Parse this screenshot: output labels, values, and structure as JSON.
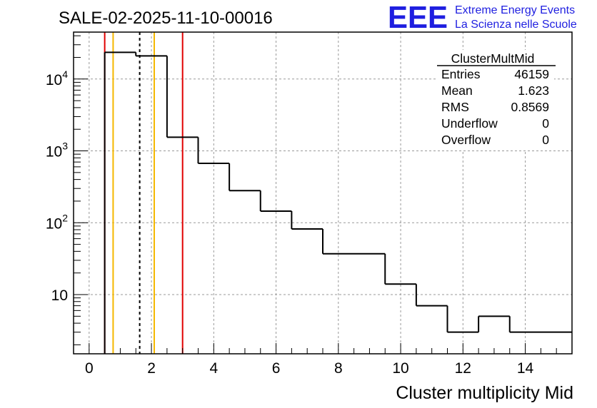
{
  "page_title": "SALE-02-2025-11-10-00016",
  "logo": {
    "mark": "EEE",
    "line1": "Extreme Energy Events",
    "line2": "La Scienza nelle Scuole",
    "color": "#1f1fe0"
  },
  "stats_box": {
    "name": "ClusterMultMid",
    "rows": [
      {
        "label": "Entries",
        "value": "46159"
      },
      {
        "label": "Mean",
        "value": "1.623"
      },
      {
        "label": "RMS",
        "value": "0.8569"
      },
      {
        "label": "Underflow",
        "value": "0"
      },
      {
        "label": "Overflow",
        "value": "0"
      }
    ]
  },
  "chart_data": {
    "type": "histogram",
    "title": "SALE-02-2025-11-10-00016",
    "xlabel": "Cluster multiplicity Mid",
    "ylabel": "",
    "xlim": [
      -0.5,
      15.5
    ],
    "ylim": [
      1.5,
      45000
    ],
    "yscale": "log",
    "grid": true,
    "legend": "top-right",
    "x_ticks": [
      0,
      2,
      4,
      6,
      8,
      10,
      12,
      14
    ],
    "x_tick_labels": [
      "0",
      "2",
      "4",
      "6",
      "8",
      "10",
      "12",
      "14"
    ],
    "y_ticks": [
      10,
      100,
      1000,
      10000
    ],
    "y_tick_labels": [
      {
        "base": "10",
        "exp": ""
      },
      {
        "base": "10",
        "exp": "2"
      },
      {
        "base": "10",
        "exp": "3"
      },
      {
        "base": "10",
        "exp": "4"
      }
    ],
    "bins": [
      {
        "lo": 0.5,
        "hi": 1.5,
        "count": 23500
      },
      {
        "lo": 1.5,
        "hi": 2.5,
        "count": 21000
      },
      {
        "lo": 2.5,
        "hi": 3.5,
        "count": 1550
      },
      {
        "lo": 3.5,
        "hi": 4.5,
        "count": 670
      },
      {
        "lo": 4.5,
        "hi": 5.5,
        "count": 280
      },
      {
        "lo": 5.5,
        "hi": 6.5,
        "count": 145
      },
      {
        "lo": 6.5,
        "hi": 7.5,
        "count": 82
      },
      {
        "lo": 7.5,
        "hi": 9.5,
        "count": 37
      },
      {
        "lo": 9.5,
        "hi": 10.5,
        "count": 14
      },
      {
        "lo": 10.5,
        "hi": 11.5,
        "count": 7
      },
      {
        "lo": 11.5,
        "hi": 12.5,
        "count": 3
      },
      {
        "lo": 12.5,
        "hi": 13.5,
        "count": 5
      },
      {
        "lo": 13.5,
        "hi": 15.5,
        "count": 3
      }
    ],
    "vlines": [
      {
        "name": "red-line-low",
        "x": 0.5,
        "color": "#e00000",
        "dash": false
      },
      {
        "name": "orange-line-low",
        "x": 0.77,
        "color": "#f5b800",
        "dash": false
      },
      {
        "name": "mean-line",
        "x": 1.623,
        "color": "#000000",
        "dash": true
      },
      {
        "name": "orange-line-high",
        "x": 2.09,
        "color": "#f5b800",
        "dash": false
      },
      {
        "name": "red-line-high",
        "x": 3.0,
        "color": "#e00000",
        "dash": false
      }
    ]
  }
}
